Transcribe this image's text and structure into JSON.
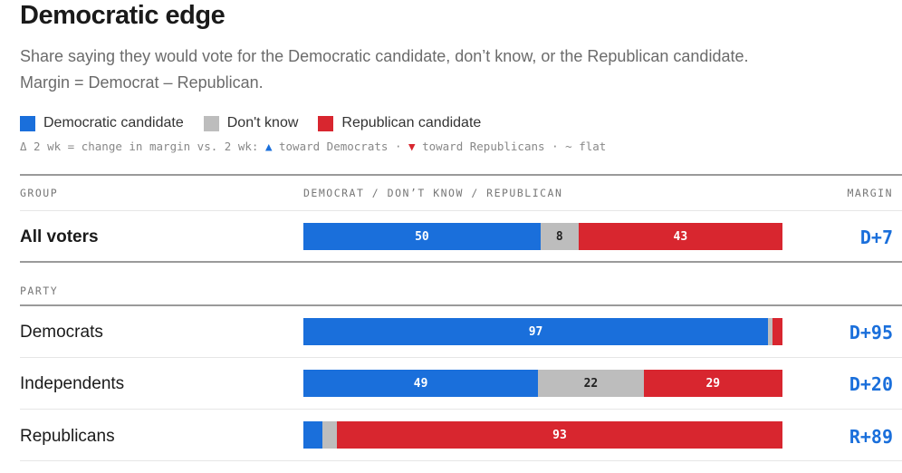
{
  "header": {
    "title": "Democratic edge",
    "subtitle": "Share saying they would vote for the Democratic candidate, don’t know, or the Republican candidate. Margin = Democrat – Republican."
  },
  "legend": [
    {
      "label": "Democratic candidate",
      "color": "#1a6fdb"
    },
    {
      "label": "Don't know",
      "color": "#bdbdbd"
    },
    {
      "label": "Republican candidate",
      "color": "#d8262f"
    }
  ],
  "delta_note": {
    "prefix": "Δ 2 wk = change in margin vs. 2 wk:",
    "up_symbol": "▲",
    "up_text": "toward Democrats",
    "sep": "·",
    "down_symbol": "▼",
    "down_text": "toward Republicans",
    "flat_text": "~ flat"
  },
  "columns": {
    "group": "GROUP",
    "bars": "DEMOCRAT / DON’T KNOW / REPUBLICAN",
    "margin": "MARGIN"
  },
  "chart_data": {
    "type": "bar",
    "stacked": true,
    "orientation": "horizontal",
    "series_names": [
      "Democratic candidate",
      "Don't know",
      "Republican candidate"
    ],
    "colors": {
      "dem": "#1a6fdb",
      "dk": "#bdbdbd",
      "rep": "#d8262f"
    },
    "total_row": {
      "label": "All voters",
      "dem": 50,
      "dk": 8,
      "rep": 43,
      "margin": "D+7"
    },
    "section_label": "PARTY",
    "rows": [
      {
        "label": "Democrats",
        "dem": 97,
        "dk": 1,
        "rep": 2,
        "margin": "D+95",
        "show_dk": false,
        "show_rep": false
      },
      {
        "label": "Independents",
        "dem": 49,
        "dk": 22,
        "rep": 29,
        "margin": "D+20",
        "show_dk": true,
        "show_rep": true
      },
      {
        "label": "Republicans",
        "dem": 4,
        "dk": 3,
        "rep": 93,
        "margin": "R+89",
        "show_dem": false,
        "show_dk": false
      }
    ]
  }
}
